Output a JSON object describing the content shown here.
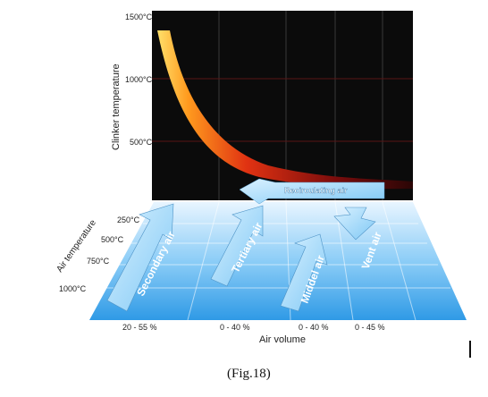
{
  "clinker_chart": {
    "y_axis_title": "Clinker temperature",
    "y_ticks": [
      "1500°C",
      "1000°C",
      "500°C"
    ]
  },
  "air_panel": {
    "y_axis_title": "Air temperature",
    "y_ticks": [
      "250°C",
      "500°C",
      "750°C",
      "1000°C"
    ],
    "x_axis_title": "Air volume",
    "volume_labels": [
      "20 - 55 %",
      "0 - 40 %",
      "0 - 40 %",
      "0 - 45 %"
    ]
  },
  "arrows": {
    "recirculating": "Recirculating air",
    "secondary": "Secondary air",
    "tertiary": "Tertiary air",
    "middle": "Middel air",
    "vent": "Vent air"
  },
  "caption": "(Fig.18)",
  "colors": {
    "panel_dark": "#0b0b0b",
    "curve_hot": "#ffd24a",
    "curve_cool": "#8a0f10",
    "air_panel": "#39a5ea",
    "arrow_fill": "#bfe5ff"
  }
}
